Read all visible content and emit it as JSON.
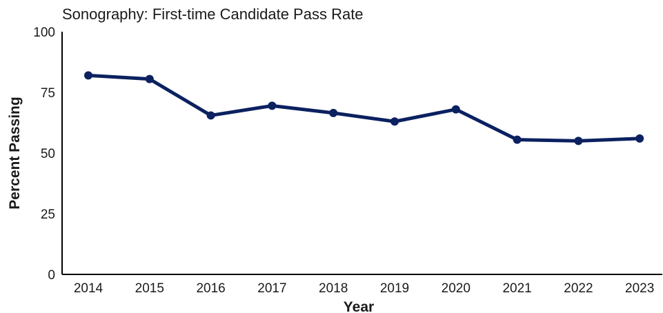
{
  "chart_data": {
    "type": "line",
    "title": "Sonography: First-time Candidate Pass Rate",
    "xlabel": "Year",
    "ylabel": "Percent Passing",
    "ylim": [
      0,
      100
    ],
    "yticks": [
      "0",
      "25",
      "50",
      "75",
      "100"
    ],
    "categories": [
      "2014",
      "2015",
      "2016",
      "2017",
      "2018",
      "2019",
      "2020",
      "2021",
      "2022",
      "2023"
    ],
    "series": [
      {
        "values": [
          82,
          80.5,
          65.5,
          69.5,
          66.5,
          63,
          68,
          55.5,
          55,
          56
        ],
        "color": "#0b2160"
      }
    ],
    "grid": false,
    "legend": "none"
  }
}
